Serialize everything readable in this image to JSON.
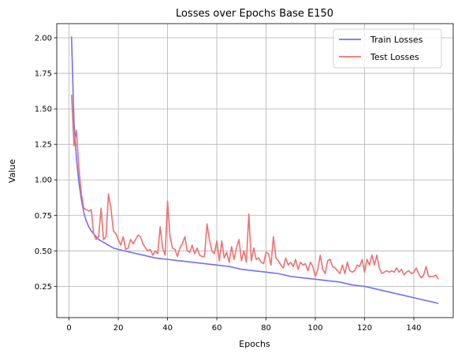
{
  "chart_data": {
    "type": "line",
    "title": "Losses over Epochs Base E150",
    "xlabel": "Epochs",
    "ylabel": "Value",
    "xlim": [
      -5,
      156
    ],
    "ylim": [
      0.03,
      2.1
    ],
    "xticks": [
      0,
      20,
      40,
      60,
      80,
      100,
      120,
      140
    ],
    "yticks": [
      0.25,
      0.5,
      0.75,
      1.0,
      1.25,
      1.5,
      1.75,
      2.0
    ],
    "xtick_labels": [
      "0",
      "20",
      "40",
      "60",
      "80",
      "100",
      "120",
      "140"
    ],
    "ytick_labels": [
      "0.25",
      "0.50",
      "0.75",
      "1.00",
      "1.25",
      "1.50",
      "1.75",
      "2.00"
    ],
    "grid": true,
    "legend_position": "top-right",
    "series": [
      {
        "name": "Train Losses",
        "color": "#7070f0",
        "x": [
          1,
          2,
          3,
          4,
          5,
          6,
          7,
          8,
          9,
          10,
          12,
          15,
          18,
          20,
          25,
          30,
          35,
          40,
          45,
          50,
          55,
          60,
          65,
          70,
          75,
          80,
          85,
          90,
          95,
          100,
          105,
          110,
          115,
          120,
          125,
          130,
          135,
          140,
          145,
          150
        ],
        "values": [
          2.01,
          1.4,
          1.15,
          0.98,
          0.86,
          0.77,
          0.71,
          0.67,
          0.64,
          0.62,
          0.58,
          0.55,
          0.52,
          0.51,
          0.49,
          0.47,
          0.45,
          0.44,
          0.43,
          0.42,
          0.41,
          0.4,
          0.39,
          0.37,
          0.36,
          0.35,
          0.34,
          0.32,
          0.31,
          0.3,
          0.29,
          0.28,
          0.26,
          0.25,
          0.23,
          0.21,
          0.19,
          0.17,
          0.15,
          0.13
        ]
      },
      {
        "name": "Test Losses",
        "color": "#f07070",
        "x": [
          1,
          2,
          3,
          4,
          5,
          6,
          7,
          8,
          9,
          10,
          11,
          12,
          13,
          14,
          15,
          16,
          17,
          18,
          19,
          20,
          21,
          22,
          23,
          24,
          25,
          26,
          27,
          28,
          29,
          30,
          31,
          32,
          33,
          34,
          35,
          36,
          37,
          38,
          39,
          40,
          41,
          42,
          43,
          44,
          45,
          46,
          47,
          48,
          49,
          50,
          51,
          52,
          53,
          54,
          55,
          56,
          57,
          58,
          59,
          60,
          61,
          62,
          63,
          64,
          65,
          66,
          67,
          68,
          69,
          70,
          71,
          72,
          73,
          74,
          75,
          76,
          77,
          78,
          79,
          80,
          81,
          82,
          83,
          84,
          85,
          86,
          87,
          88,
          89,
          90,
          91,
          92,
          93,
          94,
          95,
          96,
          97,
          98,
          99,
          100,
          101,
          102,
          103,
          104,
          105,
          106,
          107,
          108,
          109,
          110,
          111,
          112,
          113,
          114,
          115,
          116,
          117,
          118,
          119,
          120,
          121,
          122,
          123,
          124,
          125,
          126,
          127,
          128,
          129,
          130,
          131,
          132,
          133,
          134,
          135,
          136,
          137,
          138,
          139,
          140,
          141,
          142,
          143,
          144,
          145,
          146,
          147,
          148,
          149,
          150
        ],
        "values": [
          1.6,
          1.24,
          1.35,
          1.08,
          0.9,
          0.8,
          0.79,
          0.78,
          0.79,
          0.62,
          0.58,
          0.6,
          0.8,
          0.58,
          0.6,
          0.9,
          0.8,
          0.64,
          0.62,
          0.58,
          0.54,
          0.6,
          0.51,
          0.52,
          0.58,
          0.55,
          0.58,
          0.61,
          0.6,
          0.55,
          0.52,
          0.5,
          0.51,
          0.47,
          0.5,
          0.48,
          0.67,
          0.52,
          0.47,
          0.85,
          0.6,
          0.52,
          0.51,
          0.46,
          0.52,
          0.55,
          0.6,
          0.5,
          0.49,
          0.54,
          0.48,
          0.52,
          0.47,
          0.46,
          0.46,
          0.69,
          0.58,
          0.5,
          0.48,
          0.57,
          0.43,
          0.57,
          0.45,
          0.49,
          0.42,
          0.53,
          0.44,
          0.52,
          0.58,
          0.43,
          0.5,
          0.42,
          0.76,
          0.43,
          0.52,
          0.44,
          0.45,
          0.42,
          0.41,
          0.49,
          0.48,
          0.4,
          0.6,
          0.45,
          0.43,
          0.4,
          0.38,
          0.45,
          0.4,
          0.42,
          0.39,
          0.44,
          0.37,
          0.42,
          0.4,
          0.41,
          0.36,
          0.42,
          0.39,
          0.32,
          0.37,
          0.47,
          0.37,
          0.34,
          0.43,
          0.44,
          0.39,
          0.38,
          0.36,
          0.34,
          0.4,
          0.34,
          0.42,
          0.36,
          0.35,
          0.36,
          0.4,
          0.39,
          0.44,
          0.35,
          0.44,
          0.4,
          0.47,
          0.4,
          0.47,
          0.38,
          0.34,
          0.35,
          0.36,
          0.35,
          0.36,
          0.35,
          0.38,
          0.35,
          0.37,
          0.33,
          0.35,
          0.36,
          0.34,
          0.35,
          0.38,
          0.34,
          0.31,
          0.33,
          0.39,
          0.32,
          0.32,
          0.32,
          0.33,
          0.3
        ]
      }
    ]
  }
}
